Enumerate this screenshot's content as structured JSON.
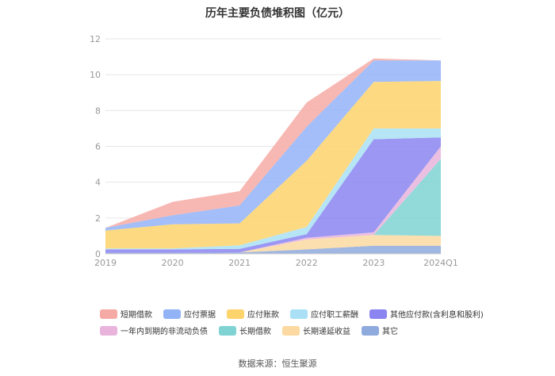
{
  "page_title": "历年主要负债堆积图（亿元）",
  "source": "数据来源：恒生聚源",
  "chart_data": {
    "type": "area",
    "stacked": true,
    "title": "历年主要负债堆积图（亿元）",
    "categories": [
      "2019",
      "2020",
      "2021",
      "2022",
      "2023",
      "2024Q1"
    ],
    "ylim": [
      0,
      12
    ],
    "yticks": [
      "0",
      "2",
      "4",
      "6",
      "8",
      "10",
      "12"
    ],
    "grid": true,
    "legend_position": "bottom",
    "series": [
      {
        "name": "其它",
        "color": "#8faadc",
        "values": [
          0.05,
          0.05,
          0.08,
          0.25,
          0.45,
          0.45
        ]
      },
      {
        "name": "长期递延收益",
        "color": "#fcd9a0",
        "values": [
          0.0,
          0.0,
          0.0,
          0.55,
          0.6,
          0.55
        ]
      },
      {
        "name": "长期借款",
        "color": "#7fd3d3",
        "values": [
          0.0,
          0.0,
          0.0,
          0.0,
          0.0,
          4.3
        ]
      },
      {
        "name": "一年内到期的非流动负债",
        "color": "#e8b4dc",
        "values": [
          0.0,
          0.0,
          0.0,
          0.1,
          0.15,
          0.7
        ]
      },
      {
        "name": "其他应付款(含利息和股利)",
        "color": "#8a85f0",
        "values": [
          0.2,
          0.2,
          0.2,
          0.2,
          5.2,
          0.5
        ]
      },
      {
        "name": "应付职工薪酬",
        "color": "#a9e0f5",
        "values": [
          0.05,
          0.05,
          0.2,
          0.4,
          0.6,
          0.5
        ]
      },
      {
        "name": "应付账款",
        "color": "#fdd36b",
        "values": [
          1.0,
          1.35,
          1.22,
          3.7,
          2.6,
          2.65
        ]
      },
      {
        "name": "应付票据",
        "color": "#93b3f7",
        "values": [
          0.15,
          0.5,
          1.0,
          1.9,
          1.2,
          1.15
        ]
      },
      {
        "name": "短期借款",
        "color": "#f6aaa5",
        "values": [
          0.0,
          0.75,
          0.8,
          1.35,
          0.1,
          0.0
        ]
      }
    ],
    "legend_order": [
      "短期借款",
      "应付票据",
      "应付账款",
      "应付职工薪酬",
      "其他应付款(含利息和股利)",
      "一年内到期的非流动负债",
      "长期借款",
      "长期递延收益",
      "其它"
    ]
  }
}
